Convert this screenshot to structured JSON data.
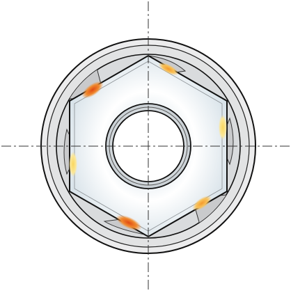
{
  "diagram": {
    "subject": "hex-nut-in-socket-cross-section",
    "colors": {
      "outline": "#111111",
      "outer_ring_fill": "#e9e9ea",
      "inner_ring_fill": "#d4d6d8",
      "lobe_fill": "#cfd0d2",
      "hex_fill": "#f3f6f8",
      "hex_shade": "#cfdde6",
      "bore_ring_fill": "#d2d8dc",
      "bore_fill": "#ffffff",
      "centerline": "#333333",
      "contact_high": "#e35a1c",
      "contact_mid": "#f49a2a",
      "contact_low": "#f8d76a"
    },
    "contact_zones": [
      {
        "label": "",
        "intensity": "high"
      },
      {
        "label": "",
        "intensity": "mid"
      },
      {
        "label": "",
        "intensity": "low"
      },
      {
        "label": "",
        "intensity": "low"
      },
      {
        "label": "",
        "intensity": "mid"
      },
      {
        "label": "",
        "intensity": "high"
      }
    ]
  }
}
